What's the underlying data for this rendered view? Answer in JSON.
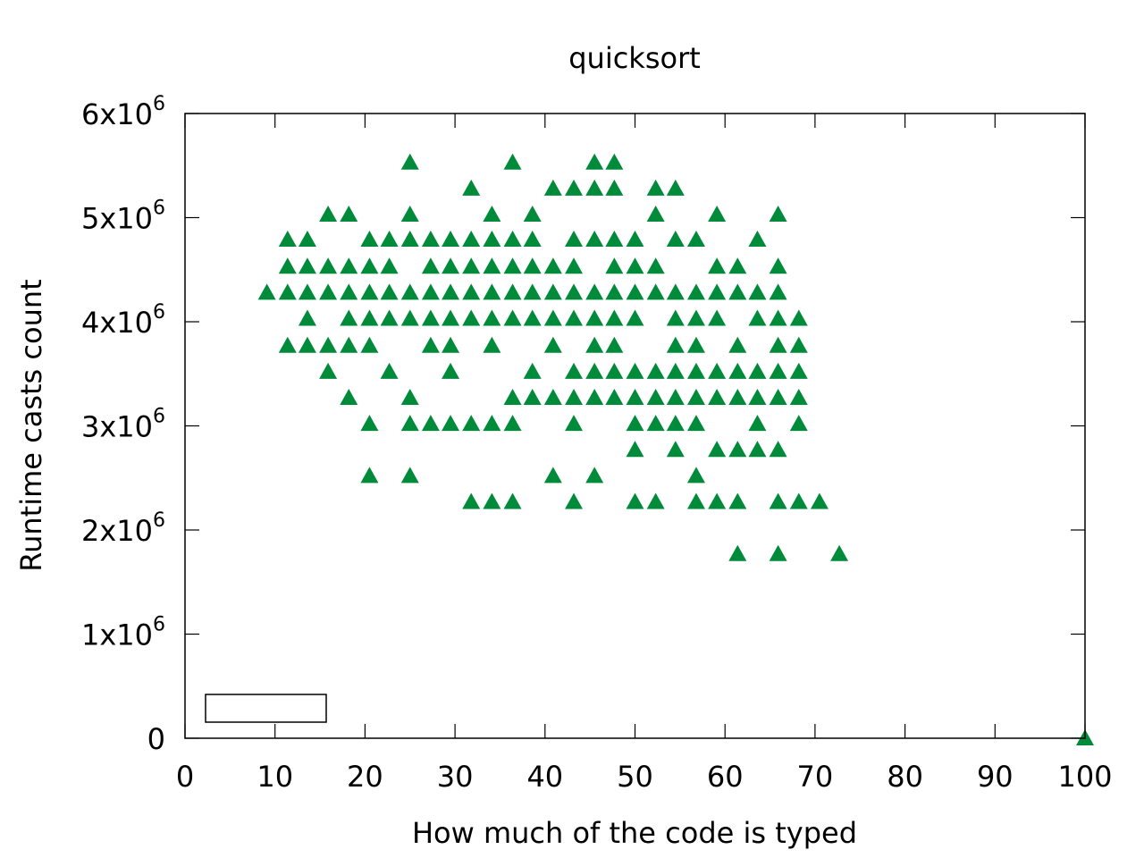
{
  "chart_data": {
    "type": "scatter",
    "title": "quicksort",
    "xlabel": "How much of the code is typed",
    "ylabel": "Runtime casts count",
    "xlim": [
      0,
      100
    ],
    "ylim": [
      0,
      6000000
    ],
    "grid": false,
    "legend": {
      "placement": "bottom-left",
      "entries": []
    },
    "xticks": [
      0,
      10,
      20,
      30,
      40,
      50,
      60,
      70,
      80,
      90,
      100
    ],
    "xtick_labels": [
      "0",
      "10",
      "20",
      "30",
      "40",
      "50",
      "60",
      "70",
      "80",
      "90",
      "100"
    ],
    "yticks": [
      0,
      1000000,
      2000000,
      3000000,
      4000000,
      5000000,
      6000000
    ],
    "ytick_labels": [
      {
        "base": "0",
        "exp": ""
      },
      {
        "base": "1x10",
        "exp": "6"
      },
      {
        "base": "2x10",
        "exp": "6"
      },
      {
        "base": "3x10",
        "exp": "6"
      },
      {
        "base": "4x10",
        "exp": "6"
      },
      {
        "base": "5x10",
        "exp": "6"
      },
      {
        "base": "6x10",
        "exp": "6"
      }
    ],
    "series": [
      {
        "marker": "triangle",
        "color": "#008b3b",
        "points": [
          [
            9.1,
            4280000
          ],
          [
            11.4,
            4790000
          ],
          [
            11.4,
            4530000
          ],
          [
            11.4,
            4280000
          ],
          [
            11.4,
            3770000
          ],
          [
            13.6,
            4790000
          ],
          [
            13.6,
            4530000
          ],
          [
            13.6,
            4280000
          ],
          [
            13.6,
            4030000
          ],
          [
            13.6,
            3770000
          ],
          [
            15.9,
            5030000
          ],
          [
            15.9,
            4530000
          ],
          [
            15.9,
            4280000
          ],
          [
            15.9,
            3770000
          ],
          [
            15.9,
            3520000
          ],
          [
            18.2,
            5030000
          ],
          [
            18.2,
            4530000
          ],
          [
            18.2,
            4280000
          ],
          [
            18.2,
            4030000
          ],
          [
            18.2,
            3770000
          ],
          [
            18.2,
            3270000
          ],
          [
            20.5,
            4790000
          ],
          [
            20.5,
            4530000
          ],
          [
            20.5,
            4280000
          ],
          [
            20.5,
            4030000
          ],
          [
            20.5,
            3770000
          ],
          [
            20.5,
            3020000
          ],
          [
            20.5,
            2520000
          ],
          [
            22.7,
            4790000
          ],
          [
            22.7,
            4530000
          ],
          [
            22.7,
            4280000
          ],
          [
            22.7,
            4030000
          ],
          [
            22.7,
            3520000
          ],
          [
            25.0,
            5530000
          ],
          [
            25.0,
            5030000
          ],
          [
            25.0,
            4790000
          ],
          [
            25.0,
            4280000
          ],
          [
            25.0,
            4030000
          ],
          [
            25.0,
            3270000
          ],
          [
            25.0,
            3020000
          ],
          [
            25.0,
            2520000
          ],
          [
            27.3,
            4790000
          ],
          [
            27.3,
            4530000
          ],
          [
            27.3,
            4280000
          ],
          [
            27.3,
            4030000
          ],
          [
            27.3,
            3770000
          ],
          [
            27.3,
            3020000
          ],
          [
            29.5,
            4790000
          ],
          [
            29.5,
            4530000
          ],
          [
            29.5,
            4280000
          ],
          [
            29.5,
            4030000
          ],
          [
            29.5,
            3770000
          ],
          [
            29.5,
            3520000
          ],
          [
            29.5,
            3020000
          ],
          [
            31.8,
            5280000
          ],
          [
            31.8,
            4790000
          ],
          [
            31.8,
            4530000
          ],
          [
            31.8,
            4280000
          ],
          [
            31.8,
            4030000
          ],
          [
            31.8,
            3020000
          ],
          [
            31.8,
            2270000
          ],
          [
            34.1,
            5030000
          ],
          [
            34.1,
            4790000
          ],
          [
            34.1,
            4530000
          ],
          [
            34.1,
            4280000
          ],
          [
            34.1,
            4030000
          ],
          [
            34.1,
            3770000
          ],
          [
            34.1,
            3020000
          ],
          [
            34.1,
            2270000
          ],
          [
            36.4,
            5530000
          ],
          [
            36.4,
            4790000
          ],
          [
            36.4,
            4530000
          ],
          [
            36.4,
            4280000
          ],
          [
            36.4,
            4030000
          ],
          [
            36.4,
            3270000
          ],
          [
            36.4,
            3020000
          ],
          [
            36.4,
            2270000
          ],
          [
            38.6,
            5030000
          ],
          [
            38.6,
            4790000
          ],
          [
            38.6,
            4530000
          ],
          [
            38.6,
            4280000
          ],
          [
            38.6,
            4030000
          ],
          [
            38.6,
            3520000
          ],
          [
            38.6,
            3270000
          ],
          [
            40.9,
            5280000
          ],
          [
            40.9,
            4530000
          ],
          [
            40.9,
            4280000
          ],
          [
            40.9,
            4030000
          ],
          [
            40.9,
            3770000
          ],
          [
            40.9,
            3270000
          ],
          [
            40.9,
            2520000
          ],
          [
            43.2,
            5280000
          ],
          [
            43.2,
            4790000
          ],
          [
            43.2,
            4530000
          ],
          [
            43.2,
            4280000
          ],
          [
            43.2,
            4030000
          ],
          [
            43.2,
            3520000
          ],
          [
            43.2,
            3270000
          ],
          [
            43.2,
            3020000
          ],
          [
            43.2,
            2270000
          ],
          [
            45.5,
            5530000
          ],
          [
            45.5,
            5280000
          ],
          [
            45.5,
            4790000
          ],
          [
            45.5,
            4280000
          ],
          [
            45.5,
            4030000
          ],
          [
            45.5,
            3770000
          ],
          [
            45.5,
            3520000
          ],
          [
            45.5,
            3270000
          ],
          [
            45.5,
            2520000
          ],
          [
            47.7,
            5530000
          ],
          [
            47.7,
            5280000
          ],
          [
            47.7,
            4790000
          ],
          [
            47.7,
            4530000
          ],
          [
            47.7,
            4280000
          ],
          [
            47.7,
            4030000
          ],
          [
            47.7,
            3770000
          ],
          [
            47.7,
            3520000
          ],
          [
            47.7,
            3270000
          ],
          [
            50.0,
            4790000
          ],
          [
            50.0,
            4530000
          ],
          [
            50.0,
            4280000
          ],
          [
            50.0,
            4030000
          ],
          [
            50.0,
            3520000
          ],
          [
            50.0,
            3270000
          ],
          [
            50.0,
            3020000
          ],
          [
            50.0,
            2770000
          ],
          [
            50.0,
            2270000
          ],
          [
            52.3,
            5280000
          ],
          [
            52.3,
            5030000
          ],
          [
            52.3,
            4530000
          ],
          [
            52.3,
            4280000
          ],
          [
            52.3,
            3520000
          ],
          [
            52.3,
            3270000
          ],
          [
            52.3,
            3020000
          ],
          [
            52.3,
            2270000
          ],
          [
            54.5,
            5280000
          ],
          [
            54.5,
            4790000
          ],
          [
            54.5,
            4280000
          ],
          [
            54.5,
            4030000
          ],
          [
            54.5,
            3770000
          ],
          [
            54.5,
            3520000
          ],
          [
            54.5,
            3270000
          ],
          [
            54.5,
            3020000
          ],
          [
            54.5,
            2770000
          ],
          [
            56.8,
            4790000
          ],
          [
            56.8,
            4280000
          ],
          [
            56.8,
            4030000
          ],
          [
            56.8,
            3770000
          ],
          [
            56.8,
            3520000
          ],
          [
            56.8,
            3270000
          ],
          [
            56.8,
            3020000
          ],
          [
            56.8,
            2520000
          ],
          [
            56.8,
            2270000
          ],
          [
            59.1,
            5030000
          ],
          [
            59.1,
            4530000
          ],
          [
            59.1,
            4280000
          ],
          [
            59.1,
            4030000
          ],
          [
            59.1,
            3520000
          ],
          [
            59.1,
            3270000
          ],
          [
            59.1,
            2770000
          ],
          [
            59.1,
            2270000
          ],
          [
            61.4,
            4530000
          ],
          [
            61.4,
            4280000
          ],
          [
            61.4,
            3770000
          ],
          [
            61.4,
            3520000
          ],
          [
            61.4,
            3270000
          ],
          [
            61.4,
            2770000
          ],
          [
            61.4,
            2270000
          ],
          [
            61.4,
            1770000
          ],
          [
            63.6,
            4790000
          ],
          [
            63.6,
            4280000
          ],
          [
            63.6,
            4030000
          ],
          [
            63.6,
            3520000
          ],
          [
            63.6,
            3270000
          ],
          [
            63.6,
            3020000
          ],
          [
            63.6,
            2770000
          ],
          [
            65.9,
            5030000
          ],
          [
            65.9,
            4530000
          ],
          [
            65.9,
            4280000
          ],
          [
            65.9,
            4030000
          ],
          [
            65.9,
            3770000
          ],
          [
            65.9,
            3520000
          ],
          [
            65.9,
            3270000
          ],
          [
            65.9,
            2770000
          ],
          [
            65.9,
            2270000
          ],
          [
            65.9,
            1770000
          ],
          [
            68.2,
            4030000
          ],
          [
            68.2,
            3770000
          ],
          [
            68.2,
            3520000
          ],
          [
            68.2,
            3270000
          ],
          [
            68.2,
            3020000
          ],
          [
            68.2,
            2270000
          ],
          [
            70.5,
            2270000
          ],
          [
            72.7,
            1770000
          ],
          [
            100,
            0
          ]
        ]
      }
    ]
  }
}
